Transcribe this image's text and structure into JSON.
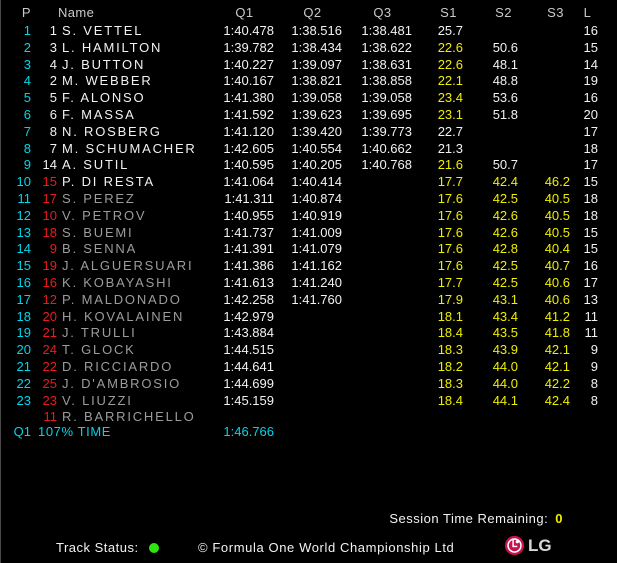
{
  "colors": {
    "background": "#000000",
    "cyan": "#00d6e8",
    "white": "#f2f2f2",
    "gray": "#9c9c9c",
    "red": "#e81c1c",
    "yellow": "#efef00",
    "header": "#c9c9c9",
    "green": "#2ee60f",
    "lg_magenta": "#c4134e"
  },
  "table": {
    "headers": {
      "p": "P",
      "name": "Name",
      "q1": "Q1",
      "q2": "Q2",
      "q3": "Q3",
      "s1": "S1",
      "s2": "S2",
      "s3": "S3",
      "l": "L"
    },
    "rows": [
      {
        "pos": "1",
        "num": "1",
        "name": "S. VETTEL",
        "q1": "1:40.478",
        "q2": "1:38.516",
        "q3": "1:38.481",
        "s1": "25.7",
        "s2": "",
        "s3": "",
        "laps": "16",
        "numc": "w",
        "namec": "w",
        "s1c": "w",
        "s2c": "w"
      },
      {
        "pos": "2",
        "num": "3",
        "name": "L. HAMILTON",
        "q1": "1:39.782",
        "q2": "1:38.434",
        "q3": "1:38.622",
        "s1": "22.6",
        "s2": "50.6",
        "s3": "",
        "laps": "15",
        "numc": "w",
        "namec": "w",
        "s1c": "y",
        "s2c": "w"
      },
      {
        "pos": "3",
        "num": "4",
        "name": "J. BUTTON",
        "q1": "1:40.227",
        "q2": "1:39.097",
        "q3": "1:38.631",
        "s1": "22.6",
        "s2": "48.1",
        "s3": "",
        "laps": "14",
        "numc": "w",
        "namec": "w",
        "s1c": "y",
        "s2c": "w"
      },
      {
        "pos": "4",
        "num": "2",
        "name": "M. WEBBER",
        "q1": "1:40.167",
        "q2": "1:38.821",
        "q3": "1:38.858",
        "s1": "22.1",
        "s2": "48.8",
        "s3": "",
        "laps": "19",
        "numc": "w",
        "namec": "w",
        "s1c": "y",
        "s2c": "w"
      },
      {
        "pos": "5",
        "num": "5",
        "name": "F. ALONSO",
        "q1": "1:41.380",
        "q2": "1:39.058",
        "q3": "1:39.058",
        "s1": "23.4",
        "s2": "53.6",
        "s3": "",
        "laps": "16",
        "numc": "w",
        "namec": "w",
        "s1c": "y",
        "s2c": "w"
      },
      {
        "pos": "6",
        "num": "6",
        "name": "F. MASSA",
        "q1": "1:41.592",
        "q2": "1:39.623",
        "q3": "1:39.695",
        "s1": "23.1",
        "s2": "51.8",
        "s3": "",
        "laps": "20",
        "numc": "w",
        "namec": "w",
        "s1c": "y",
        "s2c": "w"
      },
      {
        "pos": "7",
        "num": "8",
        "name": "N. ROSBERG",
        "q1": "1:41.120",
        "q2": "1:39.420",
        "q3": "1:39.773",
        "s1": "22.7",
        "s2": "",
        "s3": "",
        "laps": "17",
        "numc": "w",
        "namec": "w",
        "s1c": "w",
        "s2c": "w"
      },
      {
        "pos": "8",
        "num": "7",
        "name": "M. SCHUMACHER",
        "q1": "1:42.605",
        "q2": "1:40.554",
        "q3": "1:40.662",
        "s1": "21.3",
        "s2": "",
        "s3": "",
        "laps": "18",
        "numc": "w",
        "namec": "w",
        "s1c": "w",
        "s2c": "w"
      },
      {
        "pos": "9",
        "num": "14",
        "name": "A. SUTIL",
        "q1": "1:40.595",
        "q2": "1:40.205",
        "q3": "1:40.768",
        "s1": "21.6",
        "s2": "50.7",
        "s3": "",
        "laps": "17",
        "numc": "w",
        "namec": "w",
        "s1c": "y",
        "s2c": "w"
      },
      {
        "pos": "10",
        "num": "15",
        "name": "P. DI RESTA",
        "q1": "1:41.064",
        "q2": "1:40.414",
        "q3": "",
        "s1": "17.7",
        "s2": "42.4",
        "s3": "46.2",
        "laps": "15",
        "numc": "r",
        "namec": "w",
        "s1c": "y",
        "s2c": "y"
      },
      {
        "pos": "11",
        "num": "17",
        "name": "S. PEREZ",
        "q1": "1:41.311",
        "q2": "1:40.874",
        "q3": "",
        "s1": "17.6",
        "s2": "42.5",
        "s3": "40.5",
        "laps": "18",
        "numc": "r",
        "namec": "g",
        "s1c": "y",
        "s2c": "y"
      },
      {
        "pos": "12",
        "num": "10",
        "name": "V. PETROV",
        "q1": "1:40.955",
        "q2": "1:40.919",
        "q3": "",
        "s1": "17.6",
        "s2": "42.6",
        "s3": "40.5",
        "laps": "18",
        "numc": "r",
        "namec": "g",
        "s1c": "y",
        "s2c": "y"
      },
      {
        "pos": "13",
        "num": "18",
        "name": "S. BUEMI",
        "q1": "1:41.737",
        "q2": "1:41.009",
        "q3": "",
        "s1": "17.6",
        "s2": "42.6",
        "s3": "40.5",
        "laps": "15",
        "numc": "r",
        "namec": "g",
        "s1c": "y",
        "s2c": "y"
      },
      {
        "pos": "14",
        "num": "9",
        "name": "B. SENNA",
        "q1": "1:41.391",
        "q2": "1:41.079",
        "q3": "",
        "s1": "17.6",
        "s2": "42.8",
        "s3": "40.4",
        "laps": "15",
        "numc": "r",
        "namec": "g",
        "s1c": "y",
        "s2c": "y"
      },
      {
        "pos": "15",
        "num": "19",
        "name": "J. ALGUERSUARI",
        "q1": "1:41.386",
        "q2": "1:41.162",
        "q3": "",
        "s1": "17.6",
        "s2": "42.5",
        "s3": "40.7",
        "laps": "16",
        "numc": "r",
        "namec": "g",
        "s1c": "y",
        "s2c": "y"
      },
      {
        "pos": "16",
        "num": "16",
        "name": "K. KOBAYASHI",
        "q1": "1:41.613",
        "q2": "1:41.240",
        "q3": "",
        "s1": "17.7",
        "s2": "42.5",
        "s3": "40.6",
        "laps": "17",
        "numc": "r",
        "namec": "g",
        "s1c": "y",
        "s2c": "y"
      },
      {
        "pos": "17",
        "num": "12",
        "name": "P. MALDONADO",
        "q1": "1:42.258",
        "q2": "1:41.760",
        "q3": "",
        "s1": "17.9",
        "s2": "43.1",
        "s3": "40.6",
        "laps": "13",
        "numc": "r",
        "namec": "g",
        "s1c": "y",
        "s2c": "y"
      },
      {
        "pos": "18",
        "num": "20",
        "name": "H. KOVALAINEN",
        "q1": "1:42.979",
        "q2": "",
        "q3": "",
        "s1": "18.1",
        "s2": "43.4",
        "s3": "41.2",
        "laps": "11",
        "numc": "r",
        "namec": "g",
        "s1c": "y",
        "s2c": "y"
      },
      {
        "pos": "19",
        "num": "21",
        "name": "J. TRULLI",
        "q1": "1:43.884",
        "q2": "",
        "q3": "",
        "s1": "18.4",
        "s2": "43.5",
        "s3": "41.8",
        "laps": "11",
        "numc": "r",
        "namec": "g",
        "s1c": "y",
        "s2c": "y"
      },
      {
        "pos": "20",
        "num": "24",
        "name": "T. GLOCK",
        "q1": "1:44.515",
        "q2": "",
        "q3": "",
        "s1": "18.3",
        "s2": "43.9",
        "s3": "42.1",
        "laps": "9",
        "numc": "r",
        "namec": "g",
        "s1c": "y",
        "s2c": "y"
      },
      {
        "pos": "21",
        "num": "22",
        "name": "D. RICCIARDO",
        "q1": "1:44.641",
        "q2": "",
        "q3": "",
        "s1": "18.2",
        "s2": "44.0",
        "s3": "42.1",
        "laps": "9",
        "numc": "r",
        "namec": "g",
        "s1c": "y",
        "s2c": "y"
      },
      {
        "pos": "22",
        "num": "25",
        "name": "J. D'AMBROSIO",
        "q1": "1:44.699",
        "q2": "",
        "q3": "",
        "s1": "18.3",
        "s2": "44.0",
        "s3": "42.2",
        "laps": "8",
        "numc": "r",
        "namec": "g",
        "s1c": "y",
        "s2c": "y"
      },
      {
        "pos": "23",
        "num": "23",
        "name": "V. LIUZZI",
        "q1": "1:45.159",
        "q2": "",
        "q3": "",
        "s1": "18.4",
        "s2": "44.1",
        "s3": "42.4",
        "laps": "8",
        "numc": "r",
        "namec": "g",
        "s1c": "y",
        "s2c": "y"
      },
      {
        "pos": "",
        "num": "11",
        "name": "R. BARRICHELLO",
        "q1": "",
        "q2": "",
        "q3": "",
        "s1": "",
        "s2": "",
        "s3": "",
        "laps": "",
        "numc": "r",
        "namec": "g",
        "s1c": "y",
        "s2c": "y"
      }
    ]
  },
  "cutoff": {
    "session": "Q1",
    "label": "107% TIME",
    "value": "1:46.766"
  },
  "session_info": {
    "label": "Session Time Remaining:",
    "value": "0"
  },
  "footer": {
    "track_status_label": "Track Status:",
    "copyright": "© Formula One World Championship Ltd",
    "lg_wordmark": "LG"
  }
}
